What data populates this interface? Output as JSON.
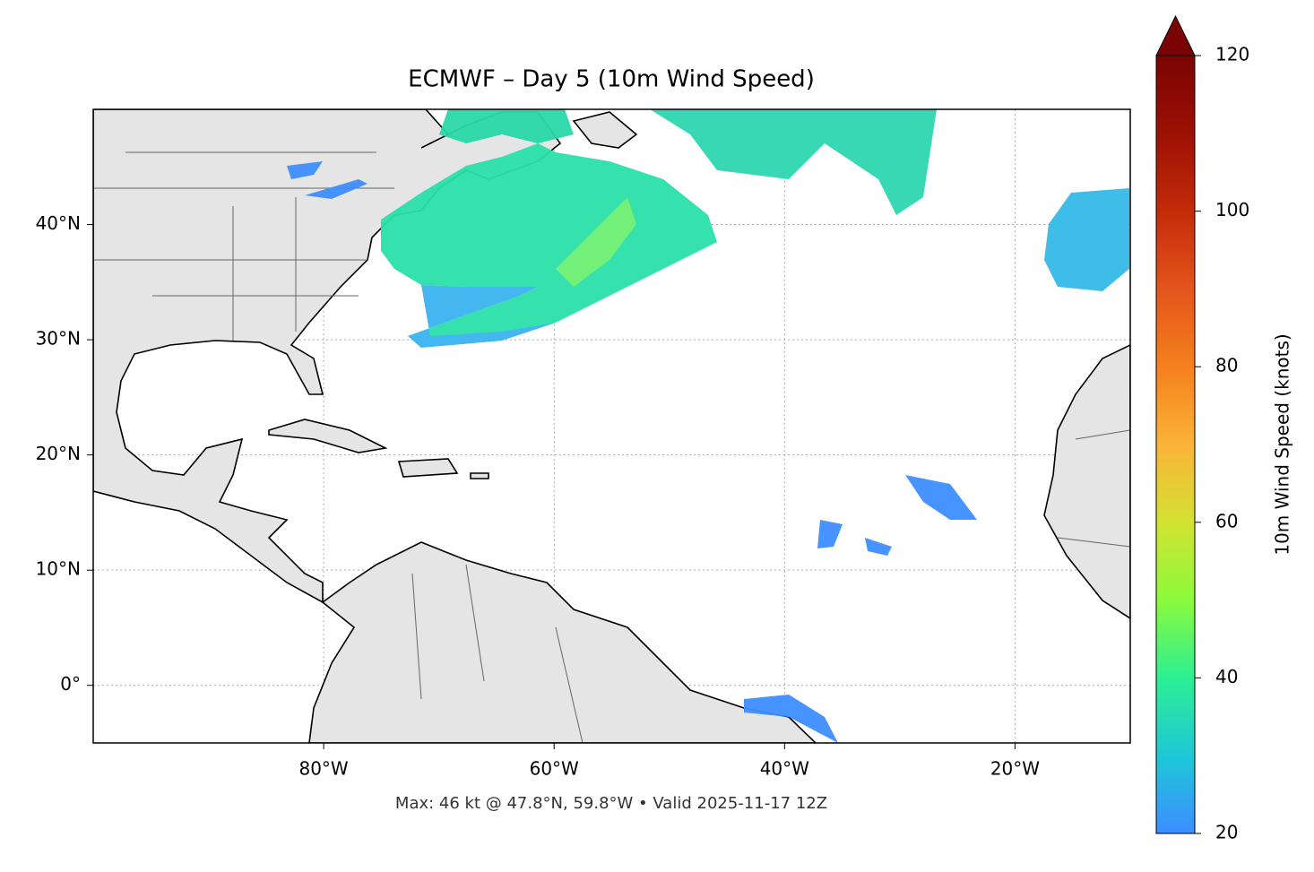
{
  "chart_data": {
    "type": "map",
    "title": "ECMWF – Day 5 (10m Wind Speed)",
    "footer": "Max: 46 kt @ 47.8°N, 59.8°W • Valid 2025-11-17 12Z",
    "xlim": [
      -100,
      -10
    ],
    "ylim": [
      -5,
      50
    ],
    "xticks": [
      {
        "value": -80,
        "label": "80°W"
      },
      {
        "value": -60,
        "label": "60°W"
      },
      {
        "value": -40,
        "label": "40°W"
      },
      {
        "value": -20,
        "label": "20°W"
      }
    ],
    "yticks": [
      {
        "value": 0,
        "label": "0°"
      },
      {
        "value": 10,
        "label": "10°N"
      },
      {
        "value": 20,
        "label": "20°N"
      },
      {
        "value": 30,
        "label": "30°N"
      },
      {
        "value": 40,
        "label": "40°N"
      }
    ],
    "grid": true,
    "colorbar": {
      "label": "10m Wind Speed (knots)",
      "lim": [
        20,
        120
      ],
      "ticks": [
        20,
        40,
        60,
        80,
        100,
        120
      ],
      "colors": [
        "#3d8dff",
        "#1ec8d7",
        "#2cef93",
        "#8bfa3c",
        "#d3e232",
        "#fbb338",
        "#f5801d",
        "#e4541b",
        "#c32b0a",
        "#9c1004",
        "#7a0403"
      ]
    }
  }
}
